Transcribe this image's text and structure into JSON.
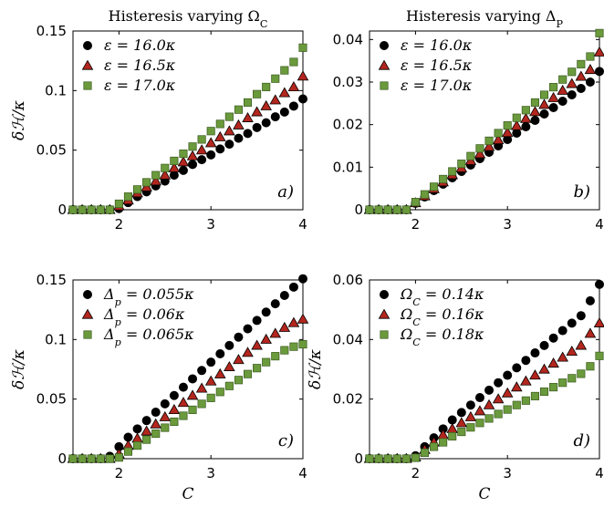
{
  "chart_data": [
    {
      "type": "scatter",
      "title": "Histeresis varying Ω_C",
      "panel_tag": "a)",
      "xlabel": "",
      "ylabel": "δℋ/κ",
      "xlim": [
        1.5,
        4
      ],
      "ylim": [
        0,
        0.15
      ],
      "x_ticks": [
        "2",
        "3",
        "4"
      ],
      "y_ticks": [
        "0",
        "0.05",
        "0.1",
        "0.15"
      ],
      "legend_position": "top-left",
      "x": [
        1.5,
        1.6,
        1.7,
        1.8,
        1.9,
        2.0,
        2.1,
        2.2,
        2.3,
        2.4,
        2.5,
        2.6,
        2.7,
        2.8,
        2.9,
        3.0,
        3.1,
        3.2,
        3.3,
        3.4,
        3.5,
        3.6,
        3.7,
        3.8,
        3.9,
        4.0
      ],
      "series": [
        {
          "name": "ε = 16.0κ",
          "marker": "circle",
          "color": "#000000",
          "values": [
            0,
            0,
            0,
            0,
            0,
            0.001,
            0.006,
            0.011,
            0.015,
            0.02,
            0.024,
            0.029,
            0.033,
            0.038,
            0.042,
            0.046,
            0.051,
            0.055,
            0.06,
            0.064,
            0.069,
            0.073,
            0.078,
            0.082,
            0.087,
            0.093
          ]
        },
        {
          "name": "ε = 16.5κ",
          "marker": "triangle",
          "color": "#b3261e",
          "values": [
            0,
            0,
            0,
            0,
            0,
            0.003,
            0.008,
            0.014,
            0.019,
            0.024,
            0.029,
            0.035,
            0.04,
            0.045,
            0.05,
            0.056,
            0.061,
            0.066,
            0.071,
            0.077,
            0.082,
            0.087,
            0.092,
            0.098,
            0.103,
            0.112
          ]
        },
        {
          "name": "ε = 17.0κ",
          "marker": "square",
          "color": "#6a9a3c",
          "values": [
            0,
            0,
            0,
            0,
            0,
            0.005,
            0.011,
            0.017,
            0.023,
            0.029,
            0.035,
            0.041,
            0.047,
            0.053,
            0.059,
            0.066,
            0.072,
            0.078,
            0.084,
            0.09,
            0.097,
            0.103,
            0.11,
            0.117,
            0.124,
            0.136
          ]
        }
      ]
    },
    {
      "type": "scatter",
      "title": "Histeresis varying Δ_P",
      "panel_tag": "b)",
      "xlabel": "",
      "ylabel": "",
      "xlim": [
        1.5,
        4
      ],
      "ylim": [
        0,
        0.042
      ],
      "x_ticks": [
        "2",
        "3",
        "4"
      ],
      "y_ticks": [
        "0",
        "0.01",
        "0.02",
        "0.03",
        "0.04"
      ],
      "legend_position": "top-left",
      "x": [
        1.5,
        1.6,
        1.7,
        1.8,
        1.9,
        2.0,
        2.1,
        2.2,
        2.3,
        2.4,
        2.5,
        2.6,
        2.7,
        2.8,
        2.9,
        3.0,
        3.1,
        3.2,
        3.3,
        3.4,
        3.5,
        3.6,
        3.7,
        3.8,
        3.9,
        4.0
      ],
      "series": [
        {
          "name": "ε = 16.0κ",
          "marker": "circle",
          "color": "#000000",
          "values": [
            0,
            0,
            0,
            0,
            0,
            0.0015,
            0.003,
            0.0045,
            0.006,
            0.0075,
            0.009,
            0.0105,
            0.012,
            0.0135,
            0.015,
            0.0165,
            0.018,
            0.0195,
            0.021,
            0.0225,
            0.024,
            0.0255,
            0.027,
            0.0285,
            0.03,
            0.0325
          ]
        },
        {
          "name": "ε = 16.5κ",
          "marker": "triangle",
          "color": "#b3261e",
          "values": [
            0,
            0,
            0,
            0,
            0,
            0.0016,
            0.0032,
            0.0049,
            0.0065,
            0.0082,
            0.0098,
            0.0115,
            0.0131,
            0.0148,
            0.0164,
            0.0181,
            0.0197,
            0.0214,
            0.023,
            0.0247,
            0.0263,
            0.028,
            0.0296,
            0.0313,
            0.0329,
            0.037
          ]
        },
        {
          "name": "ε = 17.0κ",
          "marker": "square",
          "color": "#6a9a3c",
          "values": [
            0,
            0,
            0,
            0,
            0,
            0.0018,
            0.0036,
            0.0054,
            0.0072,
            0.009,
            0.0108,
            0.0126,
            0.0144,
            0.0162,
            0.018,
            0.0198,
            0.0216,
            0.0234,
            0.0252,
            0.027,
            0.0288,
            0.0306,
            0.0324,
            0.0342,
            0.036,
            0.0415
          ]
        }
      ]
    },
    {
      "type": "scatter",
      "title": "",
      "panel_tag": "c)",
      "xlabel": "C",
      "ylabel": "δℋ/κ",
      "xlim": [
        1.5,
        4
      ],
      "ylim": [
        0,
        0.15
      ],
      "x_ticks": [
        "2",
        "3",
        "4"
      ],
      "y_ticks": [
        "0",
        "0.05",
        "0.1",
        "0.15"
      ],
      "legend_position": "top-left",
      "x": [
        1.5,
        1.6,
        1.7,
        1.8,
        1.9,
        2.0,
        2.1,
        2.2,
        2.3,
        2.4,
        2.5,
        2.6,
        2.7,
        2.8,
        2.9,
        3.0,
        3.1,
        3.2,
        3.3,
        3.4,
        3.5,
        3.6,
        3.7,
        3.8,
        3.9,
        4.0
      ],
      "series": [
        {
          "name": "Δp = 0.055κ",
          "marker": "circle",
          "color": "#000000",
          "values": [
            0,
            0,
            0,
            0,
            0.002,
            0.01,
            0.018,
            0.025,
            0.032,
            0.039,
            0.046,
            0.053,
            0.06,
            0.067,
            0.074,
            0.081,
            0.088,
            0.095,
            0.102,
            0.109,
            0.116,
            0.123,
            0.13,
            0.137,
            0.144,
            0.151
          ]
        },
        {
          "name": "Δp = 0.06κ",
          "marker": "triangle",
          "color": "#b3261e",
          "values": [
            0,
            0,
            0,
            0,
            0,
            0.004,
            0.011,
            0.017,
            0.023,
            0.029,
            0.035,
            0.041,
            0.047,
            0.053,
            0.059,
            0.065,
            0.071,
            0.077,
            0.083,
            0.089,
            0.095,
            0.1,
            0.105,
            0.11,
            0.114,
            0.117
          ]
        },
        {
          "name": "Δp = 0.065κ",
          "marker": "square",
          "color": "#6a9a3c",
          "values": [
            0,
            0,
            0,
            0,
            0,
            0.001,
            0.006,
            0.011,
            0.016,
            0.021,
            0.026,
            0.031,
            0.036,
            0.041,
            0.046,
            0.051,
            0.056,
            0.061,
            0.066,
            0.071,
            0.076,
            0.081,
            0.086,
            0.091,
            0.094,
            0.096
          ]
        }
      ]
    },
    {
      "type": "scatter",
      "title": "",
      "panel_tag": "d)",
      "xlabel": "C",
      "ylabel": "δℋ/κ",
      "xlim": [
        1.5,
        4
      ],
      "ylim": [
        0,
        0.06
      ],
      "x_ticks": [
        "2",
        "3",
        "4"
      ],
      "y_ticks": [
        "0",
        "0.02",
        "0.04",
        "0.06"
      ],
      "legend_position": "top-left",
      "x": [
        1.5,
        1.6,
        1.7,
        1.8,
        1.9,
        2.0,
        2.1,
        2.2,
        2.3,
        2.4,
        2.5,
        2.6,
        2.7,
        2.8,
        2.9,
        3.0,
        3.1,
        3.2,
        3.3,
        3.4,
        3.5,
        3.6,
        3.7,
        3.8,
        3.9,
        4.0
      ],
      "series": [
        {
          "name": "ΩC = 0.14κ",
          "marker": "circle",
          "color": "#000000",
          "values": [
            0,
            0,
            0,
            0,
            0,
            0.001,
            0.004,
            0.007,
            0.01,
            0.013,
            0.0155,
            0.018,
            0.0205,
            0.023,
            0.0255,
            0.028,
            0.0305,
            0.033,
            0.0355,
            0.038,
            0.0405,
            0.043,
            0.0455,
            0.048,
            0.053,
            0.0585
          ]
        },
        {
          "name": "ΩC = 0.16κ",
          "marker": "triangle",
          "color": "#b3261e",
          "values": [
            0,
            0,
            0,
            0,
            0,
            0.0005,
            0.003,
            0.0055,
            0.008,
            0.01,
            0.012,
            0.014,
            0.016,
            0.018,
            0.02,
            0.022,
            0.024,
            0.026,
            0.028,
            0.03,
            0.032,
            0.034,
            0.036,
            0.038,
            0.042,
            0.0455
          ]
        },
        {
          "name": "ΩC = 0.18κ",
          "marker": "square",
          "color": "#6a9a3c",
          "values": [
            0,
            0,
            0,
            0,
            0,
            0.0003,
            0.002,
            0.004,
            0.0055,
            0.0075,
            0.009,
            0.0105,
            0.012,
            0.0135,
            0.015,
            0.0165,
            0.018,
            0.0195,
            0.021,
            0.0225,
            0.024,
            0.0255,
            0.027,
            0.0285,
            0.031,
            0.0345
          ]
        }
      ]
    }
  ]
}
